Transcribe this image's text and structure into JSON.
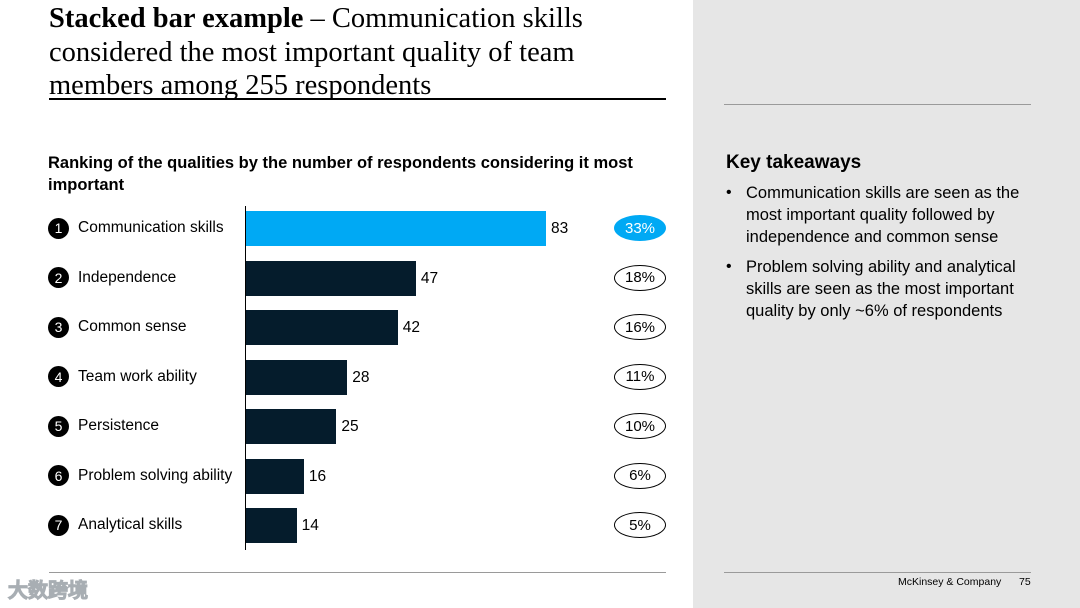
{
  "title": {
    "bold": "Stacked bar example",
    "rest": " – Communication skills considered the most important quality of team members among 255 respondents"
  },
  "chart_data": {
    "type": "bar",
    "title": "Ranking of the qualities by the number of respondents considering it most important",
    "categories": [
      "Communication skills",
      "Independence",
      "Common sense",
      "Team work ability",
      "Persistence",
      "Problem solving ability",
      "Analytical skills"
    ],
    "ranks": [
      "1",
      "2",
      "3",
      "4",
      "5",
      "6",
      "7"
    ],
    "values": [
      83,
      47,
      42,
      28,
      25,
      16,
      14
    ],
    "percentages": [
      "33%",
      "18%",
      "16%",
      "11%",
      "10%",
      "6%",
      "5%"
    ],
    "highlight_index": 0,
    "xlim": [
      0,
      83
    ],
    "orientation": "horizontal",
    "grid": false,
    "colors": {
      "highlight": "#00a9f4",
      "default": "#051c2c"
    }
  },
  "takeaways": {
    "title": "Key takeaways",
    "items": [
      "Communication skills are seen as the most important quality followed by independence and common sense",
      "Problem solving ability and analytical skills are seen as the most important quality by only ~6% of respondents"
    ]
  },
  "footer": {
    "brand": "McKinsey & Company",
    "page": "75"
  },
  "watermark": "大数跨境"
}
